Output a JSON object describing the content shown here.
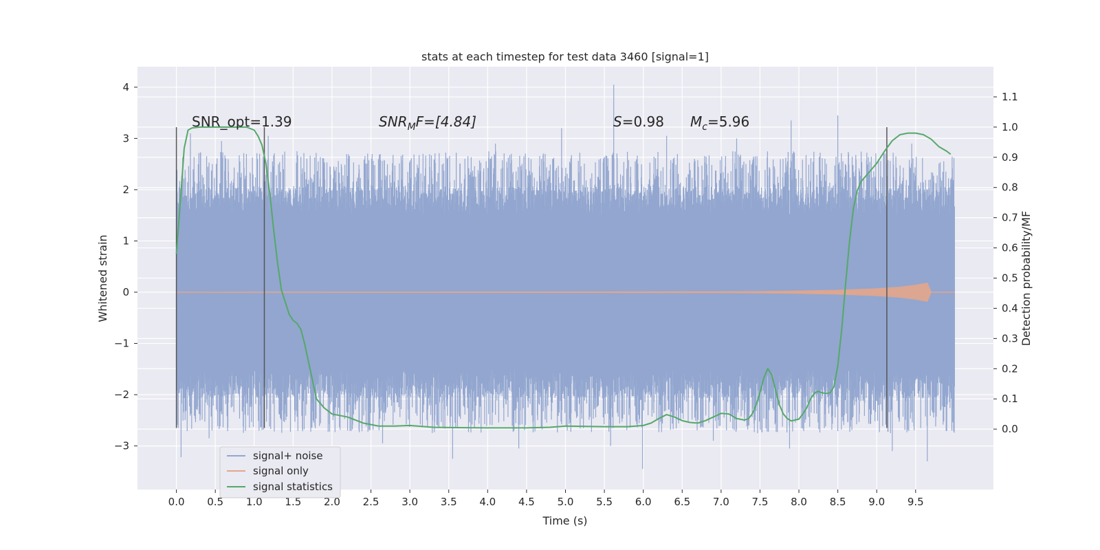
{
  "chart_data": {
    "type": "line",
    "title": "stats at each timestep for test data 3460 [signal=1]",
    "xlabel": "Time (s)",
    "ylabel_left": "Whitened strain",
    "ylabel_right": "Detection probability/MF",
    "xlim": [
      -0.5,
      10.5
    ],
    "ylim_left": [
      -3.85,
      4.4
    ],
    "ylim_right": [
      -0.2,
      1.2
    ],
    "xticks": [
      "0.0",
      "0.5",
      "1.0",
      "1.5",
      "2.0",
      "2.5",
      "3.0",
      "3.5",
      "4.0",
      "4.5",
      "5.0",
      "5.5",
      "6.0",
      "6.5",
      "7.0",
      "7.5",
      "8.0",
      "8.5",
      "9.0",
      "9.5"
    ],
    "yticks_left": [
      "−3",
      "−2",
      "−1",
      "0",
      "1",
      "2",
      "3",
      "4"
    ],
    "yticks_right": [
      "0.0",
      "0.1",
      "0.2",
      "0.3",
      "0.4",
      "0.5",
      "0.6",
      "0.7",
      "0.8",
      "0.9",
      "1.0",
      "1.1"
    ],
    "grid": true,
    "legend_position": "lower-left",
    "annotations": {
      "snr_opt": "SNR_opt=1.39",
      "snr_mf_base": "SNR",
      "snr_mf_sub": "M",
      "snr_mf_rest": "F=[4.84]",
      "s_base": "S",
      "s_rest": "=0.98",
      "mc_base": "M",
      "mc_sub": "c",
      "mc_rest": "=5.96"
    },
    "vertical_lines_x": [
      0.0,
      1.13,
      9.13
    ],
    "vertical_lines_ylim_left": [
      -2.65,
      3.22
    ],
    "series": [
      {
        "name": "signal+ noise",
        "color": "#92a6cf",
        "axis": "left",
        "x_range": [
          0.0,
          10.0
        ],
        "typical_range": [
          -1.5,
          1.5
        ],
        "spikes": [
          {
            "x": 0.06,
            "y": -3.22
          },
          {
            "x": 0.18,
            "y": 3.1
          },
          {
            "x": 0.42,
            "y": -2.85
          },
          {
            "x": 0.58,
            "y": 2.95
          },
          {
            "x": 1.18,
            "y": 3.05
          },
          {
            "x": 1.55,
            "y": 2.75
          },
          {
            "x": 2.2,
            "y": -2.7
          },
          {
            "x": 2.65,
            "y": -2.95
          },
          {
            "x": 3.55,
            "y": -3.25
          },
          {
            "x": 4.1,
            "y": 2.9
          },
          {
            "x": 4.4,
            "y": -3.05
          },
          {
            "x": 4.95,
            "y": 3.2
          },
          {
            "x": 5.62,
            "y": 4.05
          },
          {
            "x": 5.58,
            "y": -3.0
          },
          {
            "x": 5.99,
            "y": -3.45
          },
          {
            "x": 6.3,
            "y": 3.05
          },
          {
            "x": 6.9,
            "y": -2.9
          },
          {
            "x": 7.2,
            "y": 3.0
          },
          {
            "x": 7.9,
            "y": 3.35
          },
          {
            "x": 7.88,
            "y": -3.05
          },
          {
            "x": 8.5,
            "y": 3.45
          },
          {
            "x": 9.2,
            "y": -3.1
          },
          {
            "x": 9.65,
            "y": -3.3
          },
          {
            "x": 9.45,
            "y": 2.9
          }
        ]
      },
      {
        "name": "signal only",
        "color": "#e3a68c",
        "axis": "left",
        "x": [
          0.0,
          7.0,
          7.5,
          8.0,
          8.5,
          9.0,
          9.3,
          9.5,
          9.65,
          9.7,
          10.0
        ],
        "amplitude": [
          0.0,
          0.01,
          0.015,
          0.025,
          0.04,
          0.07,
          0.1,
          0.14,
          0.18,
          0.0,
          0.0
        ]
      },
      {
        "name": "signal statistics",
        "color": "#55a868",
        "axis": "right",
        "x": [
          0.0,
          0.05,
          0.1,
          0.15,
          0.2,
          0.3,
          0.4,
          0.5,
          0.6,
          0.7,
          0.8,
          0.9,
          1.0,
          1.05,
          1.1,
          1.15,
          1.2,
          1.25,
          1.3,
          1.35,
          1.4,
          1.45,
          1.5,
          1.55,
          1.6,
          1.65,
          1.7,
          1.75,
          1.8,
          1.9,
          2.0,
          2.2,
          2.4,
          2.6,
          2.8,
          3.0,
          3.3,
          3.6,
          4.0,
          4.5,
          4.8,
          5.0,
          5.5,
          5.8,
          6.0,
          6.1,
          6.2,
          6.3,
          6.4,
          6.5,
          6.6,
          6.7,
          6.8,
          6.9,
          7.0,
          7.1,
          7.2,
          7.3,
          7.35,
          7.4,
          7.45,
          7.5,
          7.55,
          7.6,
          7.65,
          7.7,
          7.75,
          7.8,
          7.85,
          7.9,
          8.0,
          8.05,
          8.1,
          8.15,
          8.2,
          8.25,
          8.3,
          8.35,
          8.4,
          8.45,
          8.5,
          8.55,
          8.6,
          8.65,
          8.7,
          8.75,
          8.8,
          8.9,
          9.0,
          9.1,
          9.2,
          9.3,
          9.4,
          9.5,
          9.6,
          9.7,
          9.8,
          9.9,
          9.95
        ],
        "y": [
          0.58,
          0.75,
          0.93,
          0.99,
          0.997,
          1.0,
          1.0,
          1.0,
          1.0,
          1.0,
          1.0,
          1.0,
          0.99,
          0.97,
          0.94,
          0.88,
          0.78,
          0.66,
          0.55,
          0.46,
          0.42,
          0.38,
          0.36,
          0.35,
          0.33,
          0.28,
          0.22,
          0.16,
          0.1,
          0.07,
          0.05,
          0.04,
          0.02,
          0.01,
          0.01,
          0.012,
          0.006,
          0.005,
          0.004,
          0.004,
          0.006,
          0.01,
          0.008,
          0.008,
          0.012,
          0.02,
          0.035,
          0.048,
          0.04,
          0.028,
          0.022,
          0.02,
          0.028,
          0.04,
          0.052,
          0.05,
          0.035,
          0.03,
          0.034,
          0.05,
          0.08,
          0.12,
          0.17,
          0.2,
          0.18,
          0.13,
          0.08,
          0.05,
          0.035,
          0.027,
          0.033,
          0.05,
          0.07,
          0.1,
          0.12,
          0.125,
          0.12,
          0.118,
          0.12,
          0.14,
          0.21,
          0.33,
          0.48,
          0.62,
          0.73,
          0.79,
          0.82,
          0.85,
          0.88,
          0.92,
          0.955,
          0.975,
          0.98,
          0.98,
          0.975,
          0.96,
          0.935,
          0.92,
          0.91
        ]
      }
    ]
  }
}
